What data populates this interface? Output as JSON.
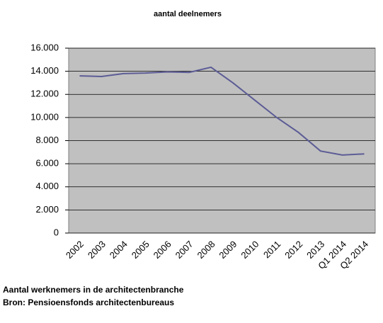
{
  "chart_data": {
    "type": "line",
    "title": "aantal deelnemers",
    "categories": [
      "2002",
      "2003",
      "2004",
      "2005",
      "2006",
      "2007",
      "2008",
      "2009",
      "2010",
      "2011",
      "2012",
      "2013",
      "Q1 2014",
      "Q2 2014"
    ],
    "series": [
      {
        "name": "aantal deelnemers",
        "color": "#5c5c96",
        "values": [
          13600,
          13550,
          13800,
          13850,
          13950,
          13900,
          14350,
          13000,
          11500,
          10000,
          8700,
          7100,
          6750,
          6850
        ]
      }
    ],
    "ylim": [
      0,
      16000
    ],
    "yticks": [
      0,
      {
        "value": 2000,
        "label": "2.000"
      },
      {
        "value": 4000,
        "label": "4.000"
      },
      {
        "value": 6000,
        "label": "6.000"
      },
      {
        "value": 8000,
        "label": "8.000"
      },
      {
        "value": 10000,
        "label": "10.000"
      },
      {
        "value": 12000,
        "label": "12.000"
      },
      {
        "value": 14000,
        "label": "14.000"
      },
      {
        "value": 16000,
        "label": "16.000"
      }
    ],
    "grid": true,
    "caption": [
      "Aantal werknemers in de architectenbranche",
      "Bron: Pensioensfonds architectenbureaus"
    ]
  }
}
